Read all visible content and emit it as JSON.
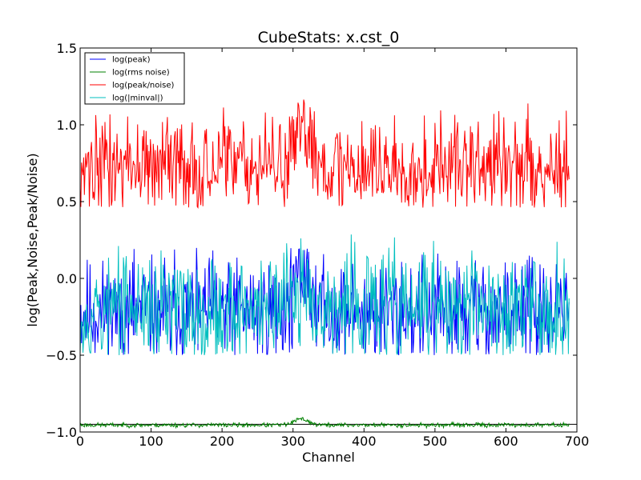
{
  "chart_data": {
    "type": "line",
    "title": "CubeStats: x.cst_0",
    "xlabel": "Channel",
    "ylabel": "log(Peak,Noise,Peak/Noise)",
    "xlim": [
      0,
      700
    ],
    "ylim": [
      -1.0,
      1.5
    ],
    "xticks": [
      {
        "value": 0,
        "label": "0"
      },
      {
        "value": 100,
        "label": "100"
      },
      {
        "value": 200,
        "label": "200"
      },
      {
        "value": 300,
        "label": "300"
      },
      {
        "value": 400,
        "label": "400"
      },
      {
        "value": 500,
        "label": "500"
      },
      {
        "value": 600,
        "label": "600"
      },
      {
        "value": 700,
        "label": "700"
      }
    ],
    "yticks": [
      {
        "value": -1.0,
        "label": "−1.0"
      },
      {
        "value": -0.5,
        "label": "−0.5"
      },
      {
        "value": 0.0,
        "label": "0.0"
      },
      {
        "value": 0.5,
        "label": "0.5"
      },
      {
        "value": 1.0,
        "label": "1.0"
      },
      {
        "value": 1.5,
        "label": "1.5"
      }
    ],
    "grid": false,
    "legend_position": "top-left",
    "x_max_channel": 689,
    "series": [
      {
        "name": "log(peak)",
        "color": "#0000ff",
        "baseline": -0.22,
        "spread": 0.17,
        "min_clip": -0.5,
        "max_clip": 0.2,
        "bump_center": 315,
        "bump_width": 18,
        "bump_height": 0.25,
        "seed": 11
      },
      {
        "name": "log(rms noise)",
        "color": "#008000",
        "baseline": -0.955,
        "spread": 0.007,
        "min_clip": -0.99,
        "max_clip": -0.89,
        "bump_center": 312,
        "bump_width": 14,
        "bump_height": 0.04,
        "seed": 23
      },
      {
        "name": "log(peak/noise)",
        "color": "#ff0000",
        "baseline": 0.73,
        "spread": 0.16,
        "min_clip": 0.46,
        "max_clip": 1.18,
        "bump_center": 318,
        "bump_width": 18,
        "bump_height": 0.22,
        "seed": 37
      },
      {
        "name": "log(|minval|)",
        "color": "#00bfbf",
        "baseline": -0.2,
        "spread": 0.19,
        "min_clip": -0.5,
        "max_clip": 0.3,
        "bump_center": 320,
        "bump_width": 20,
        "bump_height": 0.15,
        "seed": 53
      }
    ],
    "hline": {
      "value": -0.95,
      "color": "#000000"
    }
  }
}
